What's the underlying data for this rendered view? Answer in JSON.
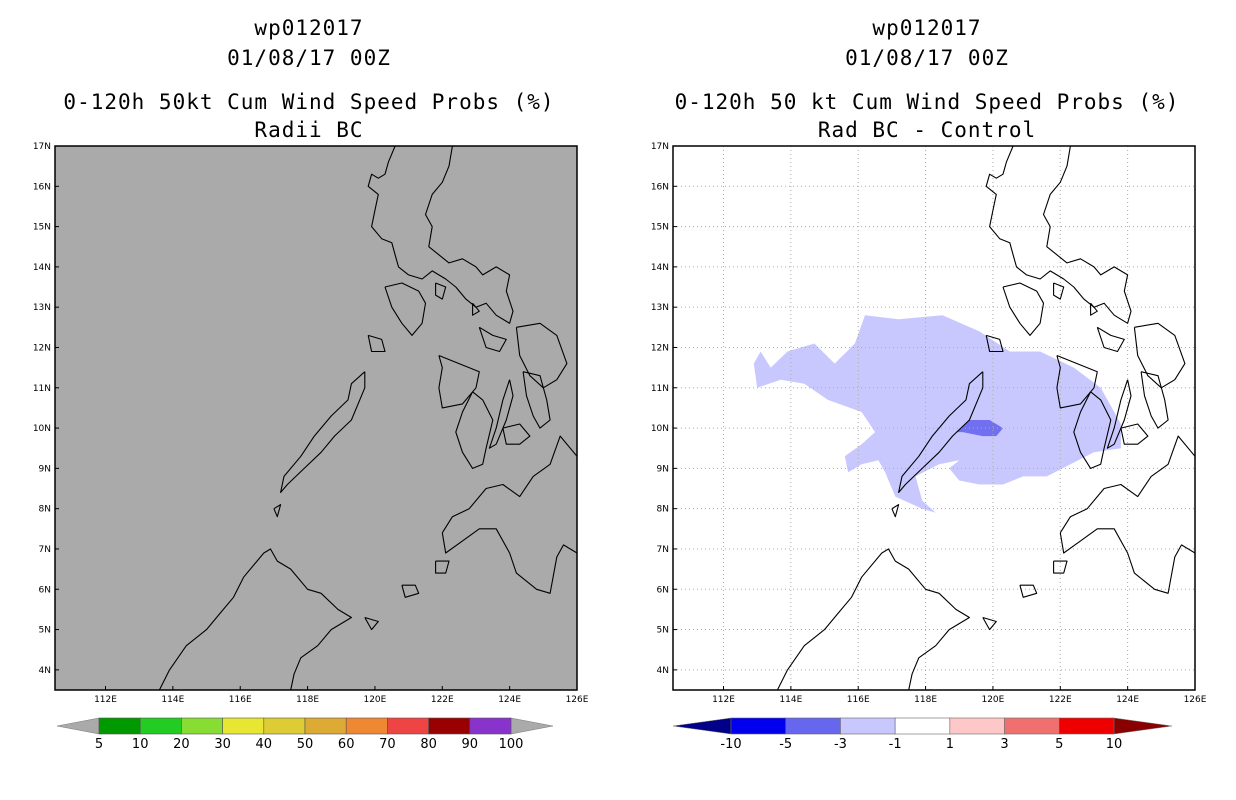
{
  "chart_data": [
    {
      "type": "heatmap",
      "title_lines": [
        "wp012017",
        "01/08/17 00Z",
        "0-120h 50kt Cum Wind Speed Probs (%)",
        "Radii BC"
      ],
      "xlim": [
        110.5,
        126
      ],
      "ylim": [
        3.5,
        17
      ],
      "x_ticks": [
        "112E",
        "114E",
        "116E",
        "118E",
        "120E",
        "122E",
        "124E",
        "126E"
      ],
      "y_ticks": [
        "4N",
        "5N",
        "6N",
        "7N",
        "8N",
        "9N",
        "10N",
        "11N",
        "12N",
        "13N",
        "14N",
        "15N",
        "16N",
        "17N"
      ],
      "background_color": "#aaaaaa",
      "grid": false,
      "colorbar": {
        "labels": [
          "5",
          "10",
          "20",
          "30",
          "40",
          "50",
          "60",
          "70",
          "80",
          "90",
          "100"
        ],
        "colors": [
          "#009900",
          "#22cc22",
          "#88dd33",
          "#e6e633",
          "#ddcc33",
          "#ddaa33",
          "#ee8833",
          "#ee4444",
          "#990000",
          "#8833cc"
        ],
        "end_colors": [
          "#aaaaaa",
          "#aaaaaa"
        ]
      }
    },
    {
      "type": "heatmap",
      "title_lines": [
        "wp012017",
        "01/08/17 00Z",
        "0-120h 50 kt Cum Wind Speed Probs (%)",
        "Rad BC - Control"
      ],
      "xlim": [
        110.5,
        126
      ],
      "ylim": [
        3.5,
        17
      ],
      "x_ticks": [
        "112E",
        "114E",
        "116E",
        "118E",
        "120E",
        "122E",
        "124E",
        "126E"
      ],
      "y_ticks": [
        "4N",
        "5N",
        "6N",
        "7N",
        "8N",
        "9N",
        "10N",
        "11N",
        "12N",
        "13N",
        "14N",
        "15N",
        "16N",
        "17N"
      ],
      "background_color": "#ffffff",
      "grid": true,
      "difference_regions": [
        {
          "range": "-3 to -1",
          "color": "#c8c8ff",
          "polygon": [
            [
              113.9,
              11.9
            ],
            [
              114.7,
              12.1
            ],
            [
              115.3,
              11.6
            ],
            [
              115.9,
              12.1
            ],
            [
              116.2,
              12.8
            ],
            [
              117.2,
              12.7
            ],
            [
              118.5,
              12.8
            ],
            [
              119.6,
              12.4
            ],
            [
              120.5,
              11.9
            ],
            [
              121.4,
              11.9
            ],
            [
              122.4,
              11.5
            ],
            [
              123.2,
              11.0
            ],
            [
              123.8,
              10.1
            ],
            [
              123.8,
              9.5
            ],
            [
              123.0,
              9.4
            ],
            [
              122.3,
              9.1
            ],
            [
              121.6,
              8.8
            ],
            [
              120.9,
              8.8
            ],
            [
              120.3,
              8.6
            ],
            [
              119.6,
              8.6
            ],
            [
              119.0,
              8.7
            ],
            [
              118.7,
              9.0
            ],
            [
              119.0,
              9.2
            ],
            [
              118.4,
              9.1
            ],
            [
              117.7,
              8.8
            ],
            [
              117.9,
              8.2
            ],
            [
              118.3,
              7.9
            ],
            [
              117.9,
              8.0
            ],
            [
              117.1,
              8.3
            ],
            [
              116.8,
              8.9
            ],
            [
              116.6,
              9.2
            ],
            [
              116.1,
              9.1
            ],
            [
              115.7,
              8.9
            ],
            [
              115.6,
              9.3
            ],
            [
              116.1,
              9.6
            ],
            [
              116.5,
              9.9
            ],
            [
              116.1,
              10.4
            ],
            [
              115.1,
              10.7
            ],
            [
              114.4,
              11.1
            ],
            [
              113.7,
              11.2
            ],
            [
              113.0,
              11.0
            ],
            [
              112.9,
              11.6
            ],
            [
              113.1,
              11.9
            ],
            [
              113.4,
              11.5
            ],
            [
              113.9,
              11.9
            ]
          ]
        },
        {
          "range": "-5 to -3",
          "color": "#7070f0",
          "polygon": [
            [
              118.9,
              9.9
            ],
            [
              119.3,
              10.2
            ],
            [
              119.9,
              10.2
            ],
            [
              120.3,
              10.0
            ],
            [
              120.1,
              9.8
            ],
            [
              119.7,
              9.8
            ],
            [
              119.1,
              9.9
            ],
            [
              118.9,
              9.9
            ]
          ]
        }
      ],
      "colorbar": {
        "labels": [
          "-10",
          "-5",
          "-3",
          "-1",
          "1",
          "3",
          "5",
          "10"
        ],
        "colors": [
          "#0000ee",
          "#6666ee",
          "#c8c8ff",
          "#ffffff",
          "#ffc8c8",
          "#f07070",
          "#ee0000"
        ],
        "end_colors": [
          "#000088",
          "#880000"
        ]
      }
    }
  ]
}
